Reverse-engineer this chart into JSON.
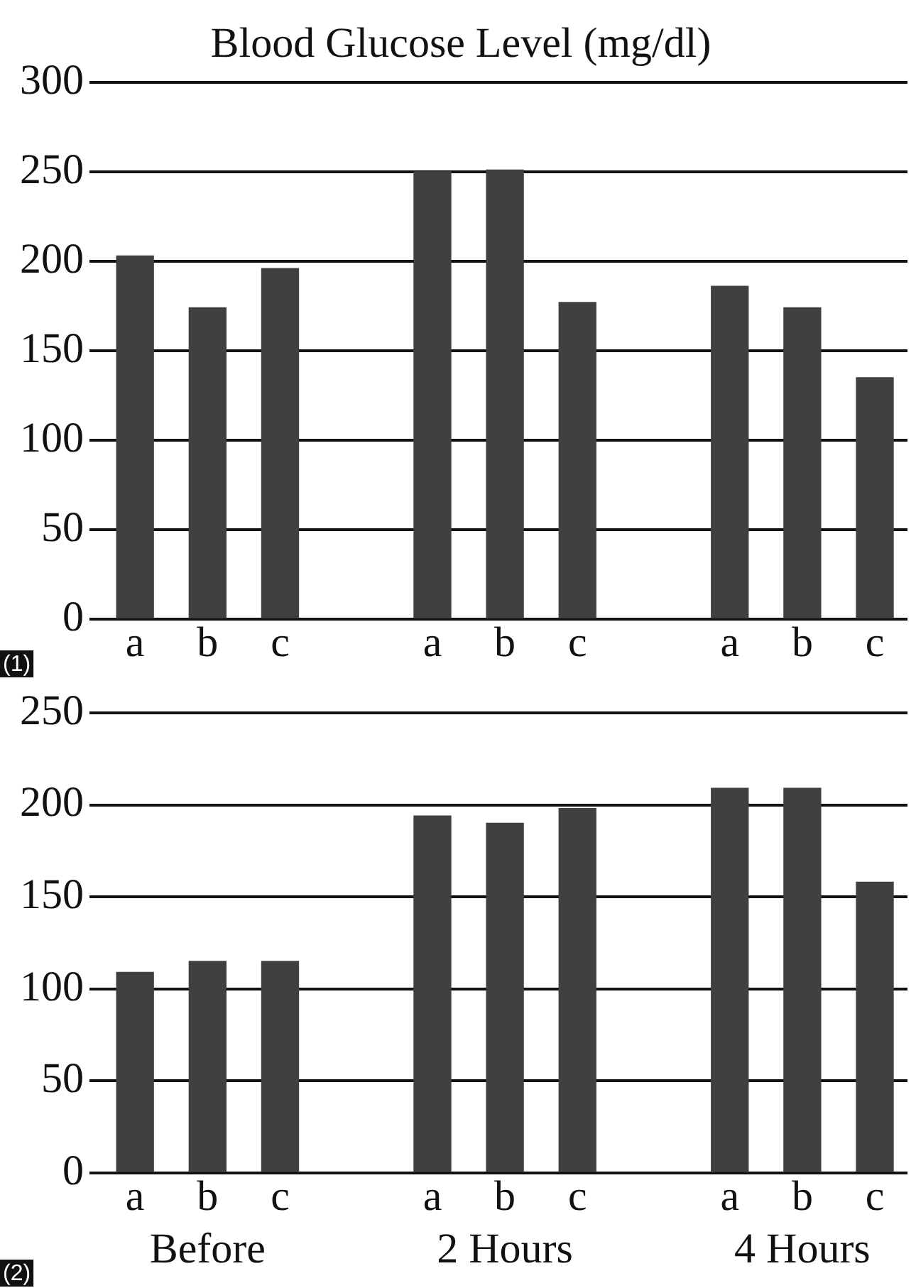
{
  "chart_data": [
    {
      "type": "bar",
      "title": "Blood Glucose Level (mg/dl)",
      "categories": [
        "a",
        "b",
        "c",
        "a",
        "b",
        "c",
        "a",
        "b",
        "c"
      ],
      "values": [
        203,
        174,
        196,
        250,
        251,
        177,
        186,
        174,
        135
      ],
      "color": "#404040",
      "ylim": [
        0,
        300
      ],
      "yticks": [
        0,
        50,
        100,
        150,
        200,
        250,
        300
      ],
      "grid": "y",
      "annotations": [
        "(1)"
      ]
    },
    {
      "type": "bar",
      "categories": [
        "a",
        "b",
        "c",
        "a",
        "b",
        "c",
        "a",
        "b",
        "c"
      ],
      "values": [
        109,
        115,
        115,
        194,
        190,
        198,
        209,
        209,
        158
      ],
      "color": "#404040",
      "ylim": [
        0,
        250
      ],
      "yticks": [
        0,
        50,
        100,
        150,
        200,
        250
      ],
      "grid": "y",
      "annotations": [
        "Before",
        "2 Hours",
        "4 Hours",
        "(2)"
      ]
    }
  ]
}
